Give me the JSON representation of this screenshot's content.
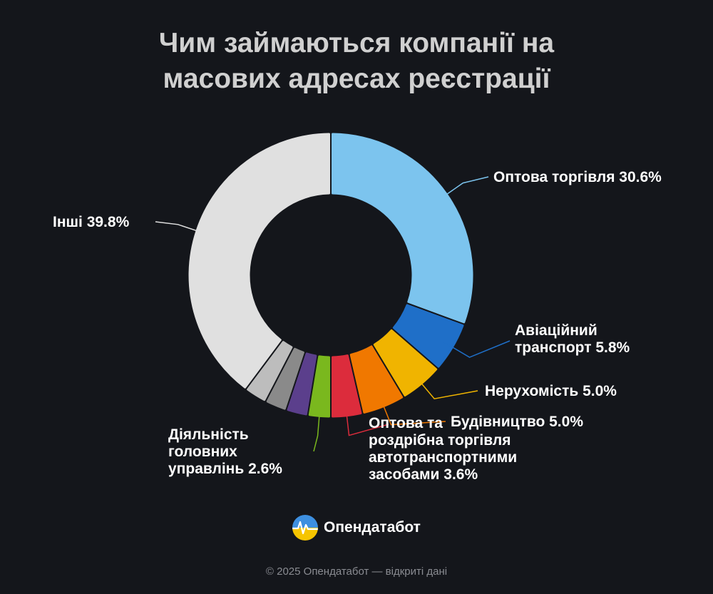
{
  "chart_data": {
    "type": "pie",
    "variant": "donut",
    "title_lines": [
      "Чим займаються компанії на",
      "масових адресах реєстрації"
    ],
    "slices": [
      {
        "name": "Оптова торгівля",
        "value": 30.6,
        "label": "Оптова торгівля 30.6%",
        "color": "#7cc4ee",
        "labeled": true
      },
      {
        "name": "Авіаційний транспорт",
        "value": 5.8,
        "label": "Авіаційний\nтранспорт 5.8%",
        "color": "#1f6fc8",
        "labeled": true
      },
      {
        "name": "Нерухомість",
        "value": 5.0,
        "label": "Нерухомість 5.0%",
        "color": "#f0b400",
        "labeled": true
      },
      {
        "name": "Будівництво",
        "value": 5.0,
        "label": "Будівництво 5.0%",
        "color": "#f07800",
        "labeled": true
      },
      {
        "name": "Оптова та роздрібна торгівля автотранспортними засобами",
        "value": 3.6,
        "label": "Оптова та\nроздрібна торгівля\nавтотранспортними\nзасобами 3.6%",
        "color": "#dc2c3c",
        "labeled": true
      },
      {
        "name": "Діяльність головних управлінь",
        "value": 2.6,
        "label": "Діяльність\nголовних\nуправлінь 2.6%",
        "color": "#7ab81e",
        "labeled": true
      },
      {
        "name": "unlabeled-1",
        "value": 2.5,
        "color": "#5b3f8c",
        "labeled": false
      },
      {
        "name": "unlabeled-2",
        "value": 2.5,
        "color": "#8a8a8a",
        "labeled": false
      },
      {
        "name": "unlabeled-3",
        "value": 2.6,
        "color": "#bdbdbd",
        "labeled": false
      },
      {
        "name": "Інші",
        "value": 39.8,
        "label": "Інші 39.8%",
        "color": "#e0e0e0",
        "labeled": true
      }
    ]
  },
  "brand": {
    "name": "Опендатабот"
  },
  "footer": {
    "text": "© 2025 Опендатабот — відкриті дані"
  }
}
